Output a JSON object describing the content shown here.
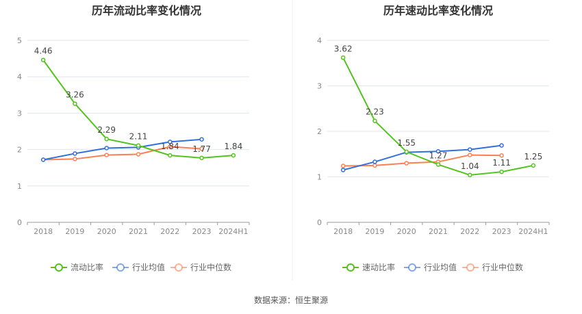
{
  "chart_data": [
    {
      "type": "line",
      "title": "历年流动比率变化情况",
      "categories": [
        "2018",
        "2019",
        "2020",
        "2021",
        "2022",
        "2023",
        "2024H1"
      ],
      "ylim": [
        0,
        5
      ],
      "yticks": [
        "0",
        "1",
        "2",
        "3",
        "4",
        "5"
      ],
      "grid": true,
      "legend": "bottom",
      "series": [
        {
          "name": "流动比率",
          "color": "#52c41a",
          "values": [
            4.46,
            3.26,
            2.29,
            2.11,
            1.84,
            1.77,
            1.84
          ],
          "labels": [
            "4.46",
            "3.26",
            "2.29",
            "2.11",
            "1.84",
            "1.77",
            "1.84"
          ]
        },
        {
          "name": "行业均值",
          "color": "#2f6fdf",
          "values": [
            1.72,
            1.89,
            2.04,
            2.06,
            2.21,
            2.28,
            null
          ]
        },
        {
          "name": "行业中位数",
          "color": "#ff7f50",
          "values": [
            1.72,
            1.74,
            1.85,
            1.87,
            2.08,
            2.02,
            null
          ]
        }
      ]
    },
    {
      "type": "line",
      "title": "历年速动比率变化情况",
      "categories": [
        "2018",
        "2019",
        "2020",
        "2021",
        "2022",
        "2023",
        "2024H1"
      ],
      "ylim": [
        0,
        4
      ],
      "yticks": [
        "0",
        "1",
        "2",
        "3",
        "4"
      ],
      "grid": true,
      "legend": "bottom",
      "series": [
        {
          "name": "速动比率",
          "color": "#52c41a",
          "values": [
            3.62,
            2.23,
            1.55,
            1.27,
            1.04,
            1.11,
            1.25
          ],
          "labels": [
            "3.62",
            "2.23",
            "1.55",
            "1.27",
            "1.04",
            "1.11",
            "1.25"
          ]
        },
        {
          "name": "行业均值",
          "color": "#2f6fdf",
          "values": [
            1.15,
            1.33,
            1.54,
            1.56,
            1.6,
            1.69,
            null
          ]
        },
        {
          "name": "行业中位数",
          "color": "#ff7f50",
          "values": [
            1.24,
            1.25,
            1.3,
            1.33,
            1.48,
            1.47,
            null
          ]
        }
      ]
    }
  ],
  "source": "数据来源：恒生聚源"
}
